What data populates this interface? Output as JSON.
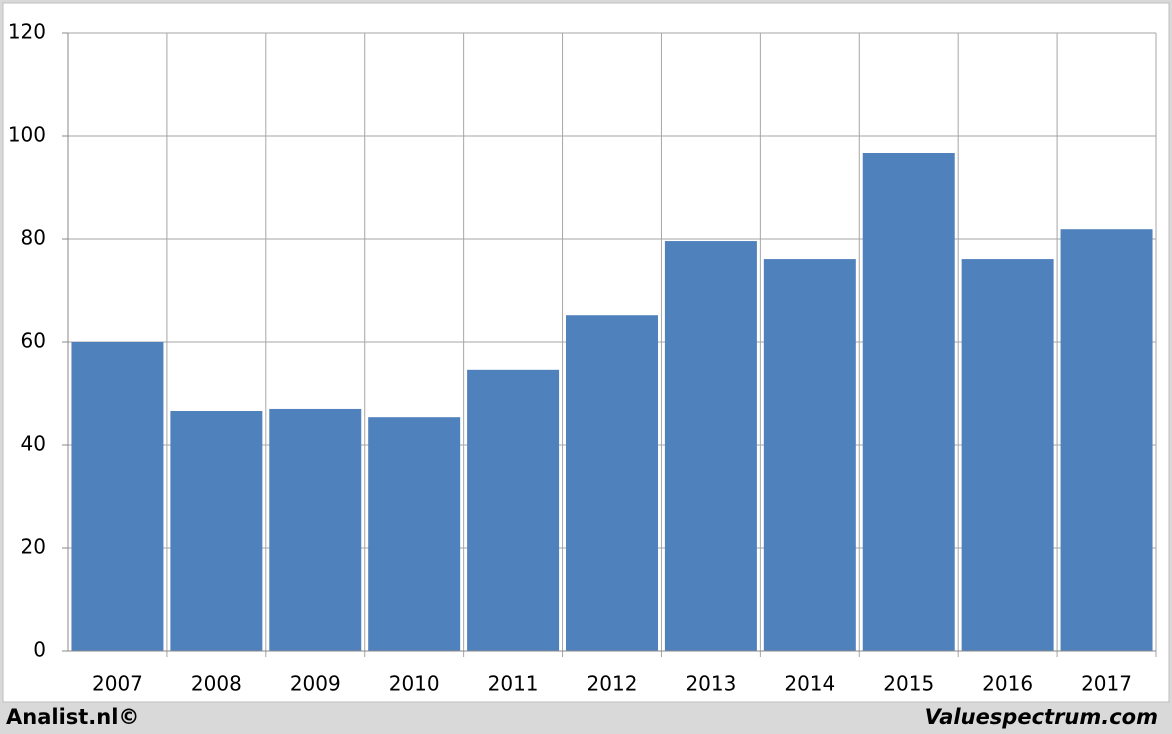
{
  "chart_data": {
    "type": "bar",
    "categories": [
      "2007",
      "2008",
      "2009",
      "2010",
      "2011",
      "2012",
      "2013",
      "2014",
      "2015",
      "2016",
      "2017"
    ],
    "values": [
      60.0,
      46.6,
      47.0,
      45.4,
      54.6,
      65.2,
      79.6,
      76.1,
      96.7,
      76.1,
      81.9
    ],
    "color": "#4f81bd",
    "ylim": [
      0,
      120
    ],
    "yticks": [
      0,
      20,
      40,
      60,
      80,
      100,
      120
    ],
    "grid": true
  },
  "footer": {
    "left": "Analist.nl©",
    "right": "Valuespectrum.com"
  }
}
